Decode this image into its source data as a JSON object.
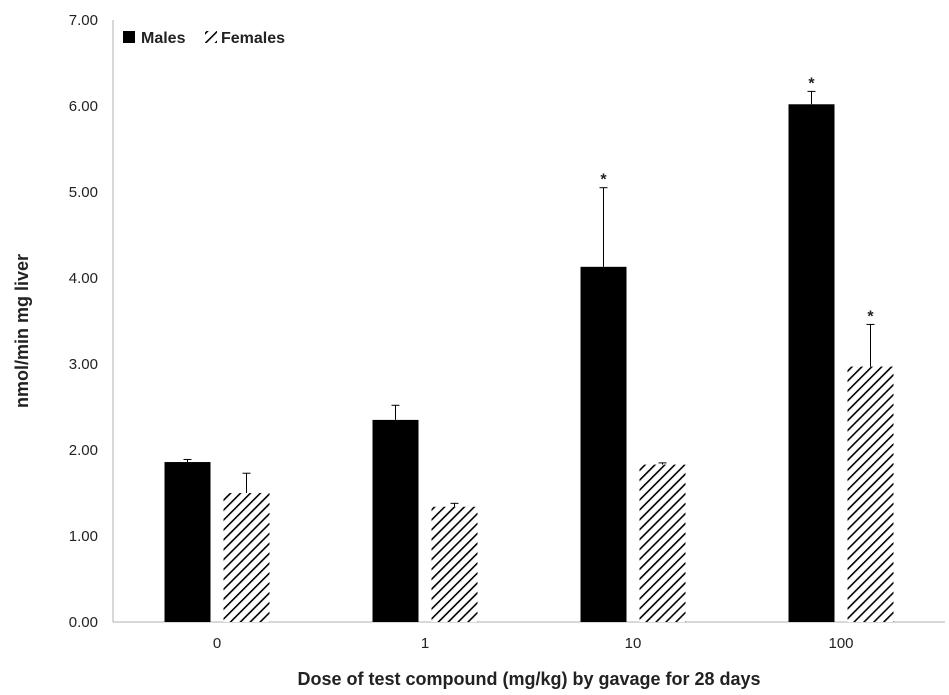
{
  "chart_data": {
    "type": "bar",
    "title": "",
    "xlabel": "Dose of test compound (mg/kg) by gavage for 28 days",
    "ylabel": "nmol/min mg liver",
    "categories": [
      "0",
      "1",
      "10",
      "100"
    ],
    "ylim": [
      0,
      7
    ],
    "yticks": [
      "0.00",
      "1.00",
      "2.00",
      "3.00",
      "4.00",
      "5.00",
      "6.00",
      "7.00"
    ],
    "grid": false,
    "legend_position": "top-left",
    "series": [
      {
        "name": "Males",
        "fill": "solid",
        "color": "#000000",
        "values": [
          1.86,
          2.35,
          4.13,
          6.02
        ],
        "errors": [
          0.03,
          0.17,
          0.92,
          0.15
        ],
        "significant": [
          false,
          false,
          true,
          true
        ]
      },
      {
        "name": "Females",
        "fill": "hatched",
        "color": "#000000",
        "values": [
          1.5,
          1.34,
          1.83,
          2.97
        ],
        "errors": [
          0.23,
          0.04,
          0.02,
          0.49
        ],
        "significant": [
          false,
          false,
          false,
          true
        ]
      }
    ],
    "significance_marker": "*"
  }
}
